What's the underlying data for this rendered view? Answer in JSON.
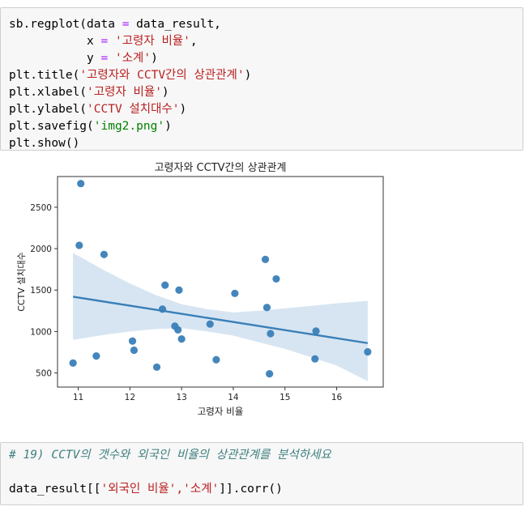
{
  "cell1": {
    "lines": [
      [
        {
          "t": "sb.regplot(data ",
          "c": "kw"
        },
        {
          "t": "=",
          "c": "op"
        },
        {
          "t": " data_result,",
          "c": "kw"
        }
      ],
      [
        {
          "t": "           x ",
          "c": "kw"
        },
        {
          "t": "=",
          "c": "op"
        },
        {
          "t": " ",
          "c": "kw"
        },
        {
          "t": "'고령자 비율'",
          "c": "str"
        },
        {
          "t": ",",
          "c": "kw"
        }
      ],
      [
        {
          "t": "           y ",
          "c": "kw"
        },
        {
          "t": "=",
          "c": "op"
        },
        {
          "t": " ",
          "c": "kw"
        },
        {
          "t": "'소계'",
          "c": "str"
        },
        {
          "t": ")",
          "c": "kw"
        }
      ],
      [
        {
          "t": "plt.title(",
          "c": "kw"
        },
        {
          "t": "'고령자와 CCTV간의 상관관계'",
          "c": "str"
        },
        {
          "t": ")",
          "c": "kw"
        }
      ],
      [
        {
          "t": "plt.xlabel(",
          "c": "kw"
        },
        {
          "t": "'고령자 비율'",
          "c": "str"
        },
        {
          "t": ")",
          "c": "kw"
        }
      ],
      [
        {
          "t": "plt.ylabel(",
          "c": "kw"
        },
        {
          "t": "'CCTV 설치대수'",
          "c": "str"
        },
        {
          "t": ")",
          "c": "kw"
        }
      ],
      [
        {
          "t": "plt.savefig(",
          "c": "kw"
        },
        {
          "t": "'img2.png'",
          "c": "strg"
        },
        {
          "t": ")",
          "c": "kw"
        }
      ],
      [
        {
          "t": "plt.show()",
          "c": "kw"
        }
      ]
    ]
  },
  "cell2": {
    "comment": "# 19) CCTV의 갯수와 외국인 비율의 상관관계를 분석하세요",
    "code_prefix": "data_result[[",
    "code_str": "'외국인 비율','소계'",
    "code_suffix": "]].corr()"
  },
  "chart_data": {
    "type": "scatter",
    "title": "고령자와 CCTV간의 상관관계",
    "xlabel": "고령자 비율",
    "ylabel": "CCTV 설치대수",
    "xlim": [
      10.6,
      16.9
    ],
    "ylim": [
      330,
      2870
    ],
    "xticks": [
      11,
      12,
      13,
      14,
      15,
      16
    ],
    "yticks": [
      500,
      1000,
      1500,
      2000,
      2500
    ],
    "color": "#3a7fb8",
    "band_color": "#c9dced",
    "points": [
      {
        "x": 10.9,
        "y": 620
      },
      {
        "x": 11.05,
        "y": 2785
      },
      {
        "x": 11.02,
        "y": 2040
      },
      {
        "x": 11.35,
        "y": 705
      },
      {
        "x": 11.5,
        "y": 1930
      },
      {
        "x": 12.05,
        "y": 885
      },
      {
        "x": 12.08,
        "y": 775
      },
      {
        "x": 12.52,
        "y": 570
      },
      {
        "x": 12.63,
        "y": 1270
      },
      {
        "x": 12.68,
        "y": 1560
      },
      {
        "x": 12.87,
        "y": 1065
      },
      {
        "x": 12.93,
        "y": 1020
      },
      {
        "x": 12.95,
        "y": 1500
      },
      {
        "x": 13.0,
        "y": 910
      },
      {
        "x": 13.55,
        "y": 1090
      },
      {
        "x": 13.67,
        "y": 660
      },
      {
        "x": 14.03,
        "y": 1460
      },
      {
        "x": 14.62,
        "y": 1870
      },
      {
        "x": 14.65,
        "y": 1290
      },
      {
        "x": 14.7,
        "y": 490
      },
      {
        "x": 14.72,
        "y": 975
      },
      {
        "x": 14.83,
        "y": 1635
      },
      {
        "x": 15.58,
        "y": 670
      },
      {
        "x": 15.6,
        "y": 1005
      },
      {
        "x": 16.6,
        "y": 755
      }
    ],
    "regression": {
      "x": [
        10.9,
        16.6
      ],
      "y": [
        1420,
        860
      ]
    },
    "ci_band": {
      "x": [
        10.9,
        11.5,
        12.0,
        12.5,
        13.0,
        13.5,
        14.0,
        14.5,
        15.0,
        15.5,
        16.0,
        16.6
      ],
      "upper": [
        1950,
        1740,
        1580,
        1440,
        1330,
        1270,
        1230,
        1250,
        1280,
        1310,
        1340,
        1370
      ],
      "lower": [
        900,
        960,
        1000,
        1030,
        1040,
        1000,
        950,
        870,
        790,
        690,
        590,
        400
      ]
    }
  }
}
